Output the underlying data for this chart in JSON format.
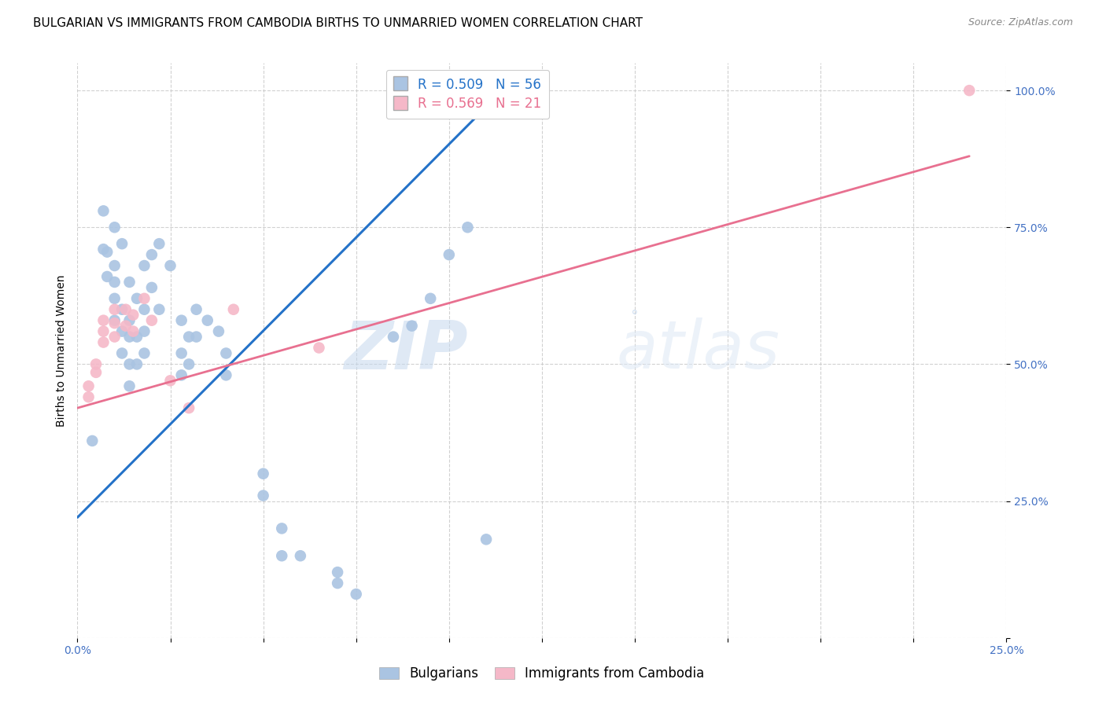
{
  "title": "BULGARIAN VS IMMIGRANTS FROM CAMBODIA BIRTHS TO UNMARRIED WOMEN CORRELATION CHART",
  "source": "Source: ZipAtlas.com",
  "ylabel": "Births to Unmarried Women",
  "watermark_zip": "ZIP",
  "watermark_atlas": "atlas",
  "watermark_dot": "°",
  "blue_color": "#aac4e2",
  "pink_color": "#f5b8c8",
  "blue_line_color": "#2472c8",
  "pink_line_color": "#e87090",
  "tick_color": "#4472c4",
  "blue_scatter": [
    [
      0.4,
      36.0
    ],
    [
      0.7,
      78.0
    ],
    [
      0.7,
      71.0
    ],
    [
      0.8,
      70.5
    ],
    [
      0.8,
      66.0
    ],
    [
      1.0,
      75.0
    ],
    [
      1.0,
      68.0
    ],
    [
      1.0,
      65.0
    ],
    [
      1.0,
      62.0
    ],
    [
      1.0,
      58.0
    ],
    [
      1.2,
      72.0
    ],
    [
      1.2,
      60.0
    ],
    [
      1.2,
      56.0
    ],
    [
      1.2,
      52.0
    ],
    [
      1.4,
      65.0
    ],
    [
      1.4,
      58.0
    ],
    [
      1.4,
      55.0
    ],
    [
      1.4,
      50.0
    ],
    [
      1.4,
      46.0
    ],
    [
      1.6,
      62.0
    ],
    [
      1.6,
      55.0
    ],
    [
      1.6,
      50.0
    ],
    [
      1.8,
      68.0
    ],
    [
      1.8,
      60.0
    ],
    [
      1.8,
      56.0
    ],
    [
      1.8,
      52.0
    ],
    [
      2.0,
      70.0
    ],
    [
      2.0,
      64.0
    ],
    [
      2.2,
      72.0
    ],
    [
      2.2,
      60.0
    ],
    [
      2.5,
      68.0
    ],
    [
      2.8,
      58.0
    ],
    [
      2.8,
      52.0
    ],
    [
      2.8,
      48.0
    ],
    [
      3.0,
      55.0
    ],
    [
      3.0,
      50.0
    ],
    [
      3.2,
      60.0
    ],
    [
      3.2,
      55.0
    ],
    [
      3.5,
      58.0
    ],
    [
      3.8,
      56.0
    ],
    [
      4.0,
      52.0
    ],
    [
      4.0,
      48.0
    ],
    [
      5.0,
      30.0
    ],
    [
      5.0,
      26.0
    ],
    [
      5.5,
      20.0
    ],
    [
      5.5,
      15.0
    ],
    [
      6.0,
      15.0
    ],
    [
      7.0,
      12.0
    ],
    [
      7.0,
      10.0
    ],
    [
      7.5,
      8.0
    ],
    [
      8.5,
      55.0
    ],
    [
      9.0,
      57.0
    ],
    [
      9.5,
      62.0
    ],
    [
      10.0,
      70.0
    ],
    [
      10.5,
      75.0
    ],
    [
      11.0,
      18.0
    ]
  ],
  "pink_scatter": [
    [
      0.3,
      46.0
    ],
    [
      0.3,
      44.0
    ],
    [
      0.5,
      50.0
    ],
    [
      0.5,
      48.5
    ],
    [
      0.7,
      58.0
    ],
    [
      0.7,
      56.0
    ],
    [
      0.7,
      54.0
    ],
    [
      1.0,
      60.0
    ],
    [
      1.0,
      57.5
    ],
    [
      1.0,
      55.0
    ],
    [
      1.3,
      60.0
    ],
    [
      1.3,
      57.0
    ],
    [
      1.5,
      59.0
    ],
    [
      1.5,
      56.0
    ],
    [
      1.8,
      62.0
    ],
    [
      2.0,
      58.0
    ],
    [
      2.5,
      47.0
    ],
    [
      3.0,
      42.0
    ],
    [
      4.2,
      60.0
    ],
    [
      6.5,
      53.0
    ],
    [
      24.0,
      100.0
    ]
  ],
  "blue_trendline_x": [
    0.0,
    11.0
  ],
  "blue_trendline_y": [
    22.0,
    97.0
  ],
  "pink_trendline_x": [
    0.0,
    24.0
  ],
  "pink_trendline_y": [
    42.0,
    88.0
  ],
  "xlim": [
    0,
    25.0
  ],
  "ylim": [
    0,
    105.0
  ],
  "xticks": [
    0,
    2.5,
    5.0,
    7.5,
    10.0,
    12.5,
    15.0,
    17.5,
    20.0,
    22.5,
    25.0
  ],
  "xtick_labels": [
    "0.0%",
    "",
    "",
    "",
    "",
    "",
    "",
    "",
    "",
    "",
    "25.0%"
  ],
  "yticks": [
    0,
    25,
    50,
    75,
    100
  ],
  "ytick_labels": [
    "",
    "25.0%",
    "50.0%",
    "75.0%",
    "100.0%"
  ],
  "legend1_label": "R = 0.509   N = 56",
  "legend2_label": "R = 0.569   N = 21",
  "bottom_legend1": "Bulgarians",
  "bottom_legend2": "Immigrants from Cambodia",
  "title_fontsize": 11,
  "source_fontsize": 9,
  "ylabel_fontsize": 10,
  "tick_fontsize": 10,
  "legend_fontsize": 12
}
